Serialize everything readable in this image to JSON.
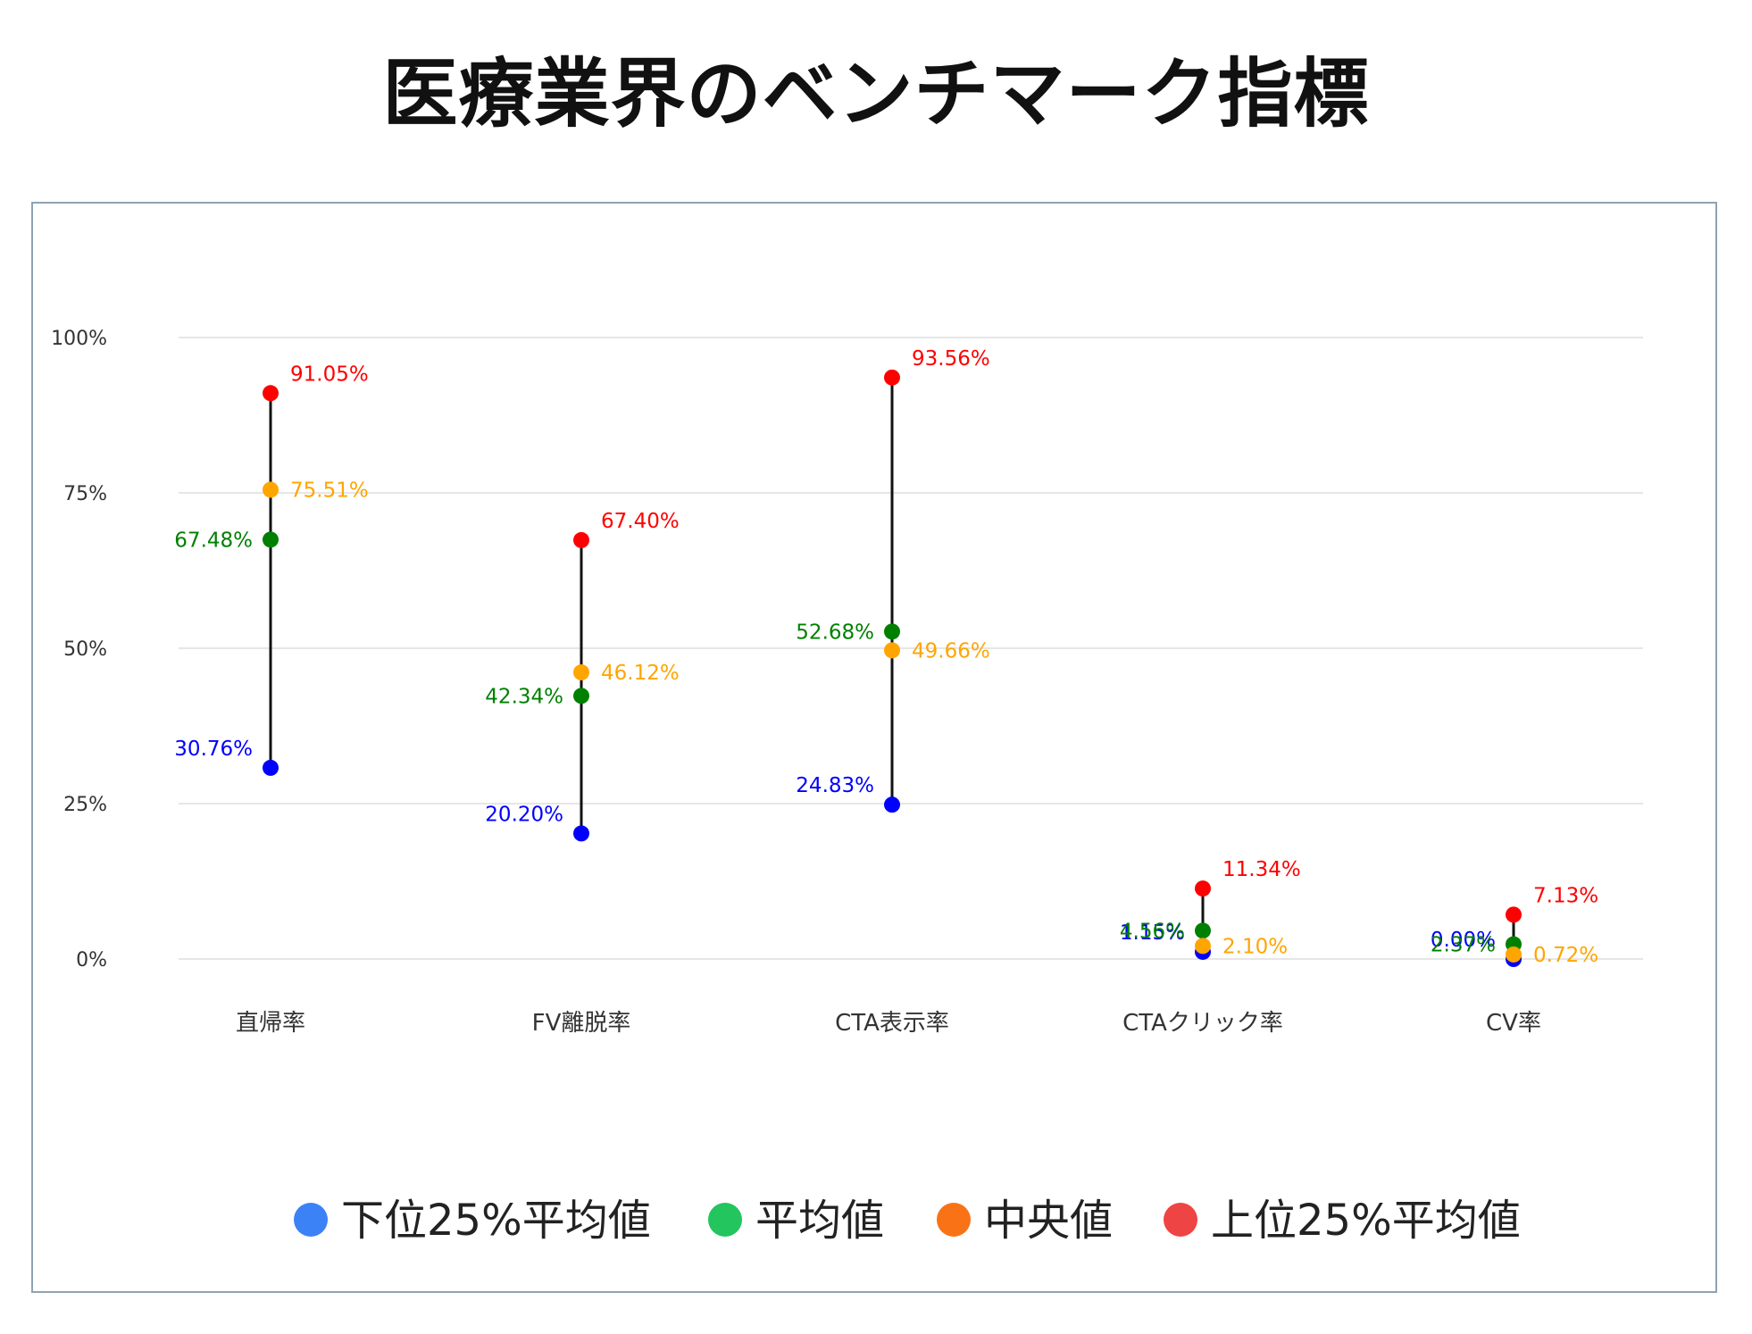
{
  "page": {
    "title": "医療業界のベンチマーク指標"
  },
  "chart_data": {
    "type": "range-dot",
    "title": "医療業界のベンチマーク指標",
    "categories": [
      "直帰率",
      "FV離脱率",
      "CTA表示率",
      "CTAクリック率",
      "CV率"
    ],
    "y_ticks": [
      "0%",
      "25%",
      "50%",
      "75%",
      "100%"
    ],
    "ylim": [
      0,
      100
    ],
    "grid": true,
    "legend_position": "bottom",
    "series": [
      {
        "key": "low",
        "name": "下位25%平均値",
        "color": "#0000ff",
        "legend_color": "#3b82f6",
        "values": [
          30.76,
          20.2,
          24.83,
          1.15,
          0.0
        ],
        "labels": [
          "30.76%",
          "20.20%",
          "24.83%",
          "1.15%",
          "0.00%"
        ]
      },
      {
        "key": "mean",
        "name": "平均値",
        "color": "#008000",
        "legend_color": "#22c55e",
        "values": [
          67.48,
          42.34,
          52.68,
          4.56,
          2.37
        ],
        "labels": [
          "67.48%",
          "42.34%",
          "52.68%",
          "4.56%",
          "2.37%"
        ]
      },
      {
        "key": "median",
        "name": "中央値",
        "color": "#ffa500",
        "legend_color": "#f97316",
        "values": [
          75.51,
          46.12,
          49.66,
          2.1,
          0.72
        ],
        "labels": [
          "75.51%",
          "46.12%",
          "49.66%",
          "2.10%",
          "0.72%"
        ]
      },
      {
        "key": "high",
        "name": "上位25%平均値",
        "color": "#ff0000",
        "legend_color": "#ef4444",
        "values": [
          91.05,
          67.4,
          93.56,
          11.34,
          7.13
        ],
        "labels": [
          "91.05%",
          "67.40%",
          "93.56%",
          "11.34%",
          "7.13%"
        ]
      }
    ]
  }
}
